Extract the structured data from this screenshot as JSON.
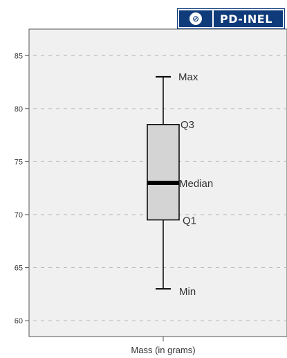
{
  "badge": {
    "text": "PD-INEL",
    "icon": "cc-zero-icon"
  },
  "chart_data": {
    "type": "box",
    "xlabel": "Mass (in grams)",
    "ylim": [
      58.5,
      87.5
    ],
    "yticks": [
      60,
      65,
      70,
      75,
      80,
      85
    ],
    "grid": true,
    "box": {
      "min": 63,
      "q1": 69.5,
      "median": 73,
      "q3": 78.5,
      "max": 83
    },
    "annotations": {
      "max": "Max",
      "q3": "Q3",
      "median": "Median",
      "q1": "Q1",
      "min": "Min"
    },
    "colors": {
      "plot_bg": "#f0f0f0",
      "box_fill": "#d4d4d4",
      "median": "#000000",
      "grid": "#b8b8b8"
    }
  }
}
